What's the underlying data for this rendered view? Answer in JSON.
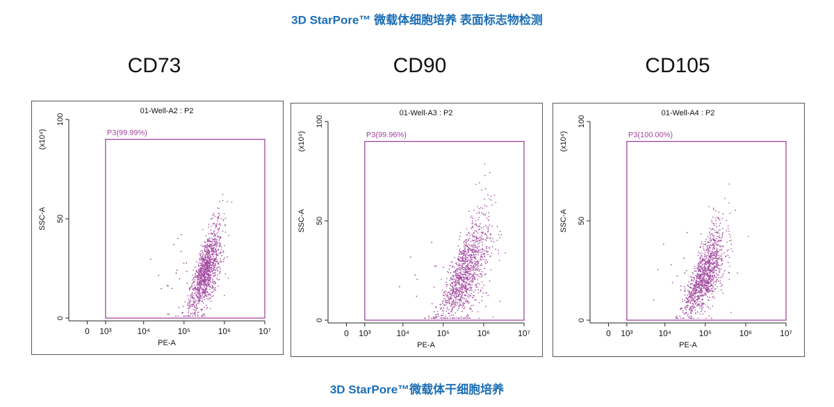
{
  "title": "3D StarPore™ 微载体细胞培养 表面标志物检测",
  "footer": "3D StarPore™微载体干细胞培养",
  "chart_data": [
    {
      "type": "scatter",
      "heading": "CD73",
      "title": "01-Well-A2 : P2",
      "x_label": "PE-A",
      "y_label": "SSC-A",
      "y_unit": "(x10⁴)",
      "gate_label": "P3(99.99%)",
      "gate_xlim": [
        1000,
        10000000
      ],
      "gate_ylim": [
        0,
        90
      ],
      "color": "#a0449e",
      "xscale": "biex",
      "xlim": [
        -1000,
        10000000
      ],
      "ylim": [
        0,
        100
      ],
      "xticks": [
        0,
        {
          "value": 1000,
          "label": "10³"
        },
        {
          "value": 10000,
          "label": "10⁴"
        },
        {
          "value": 100000,
          "label": "10⁵"
        },
        {
          "value": 1000000,
          "label": "10⁶"
        },
        {
          "value": 10000000,
          "label": "10⁷"
        }
      ],
      "yticks": [
        0,
        50,
        100
      ]
    },
    {
      "type": "scatter",
      "heading": "CD90",
      "title": "01-Well-A3 : P2",
      "x_label": "PE-A",
      "y_label": "SSC-A",
      "y_unit": "(x10⁴)",
      "gate_label": "P3(99.96%)",
      "gate_xlim": [
        1000,
        10000000
      ],
      "gate_ylim": [
        0,
        90
      ],
      "color": "#a0449e",
      "xscale": "biex",
      "xlim": [
        -1000,
        10000000
      ],
      "ylim": [
        0,
        100
      ],
      "xticks": [
        0,
        {
          "value": 1000,
          "label": "10³"
        },
        {
          "value": 10000,
          "label": "10⁴"
        },
        {
          "value": 100000,
          "label": "10⁵"
        },
        {
          "value": 1000000,
          "label": "10⁶"
        },
        {
          "value": 10000000,
          "label": "10⁷"
        }
      ],
      "yticks": [
        0,
        50,
        100
      ]
    },
    {
      "type": "scatter",
      "heading": "CD105",
      "title": "01-Well-A4 : P2",
      "x_label": "PE-A",
      "y_label": "SSC-A",
      "y_unit": "(x10⁴)",
      "gate_label": "P3(100.00%)",
      "gate_xlim": [
        1000,
        10000000
      ],
      "gate_ylim": [
        0,
        90
      ],
      "color": "#a0449e",
      "xscale": "biex",
      "xlim": [
        -1000,
        10000000
      ],
      "ylim": [
        0,
        100
      ],
      "xticks": [
        0,
        {
          "value": 1000,
          "label": "10³"
        },
        {
          "value": 10000,
          "label": "10⁴"
        },
        {
          "value": 100000,
          "label": "10⁵"
        },
        {
          "value": 1000000,
          "label": "10⁶"
        },
        {
          "value": 10000000,
          "label": "10⁷"
        }
      ],
      "yticks": [
        0,
        50,
        100
      ]
    }
  ]
}
